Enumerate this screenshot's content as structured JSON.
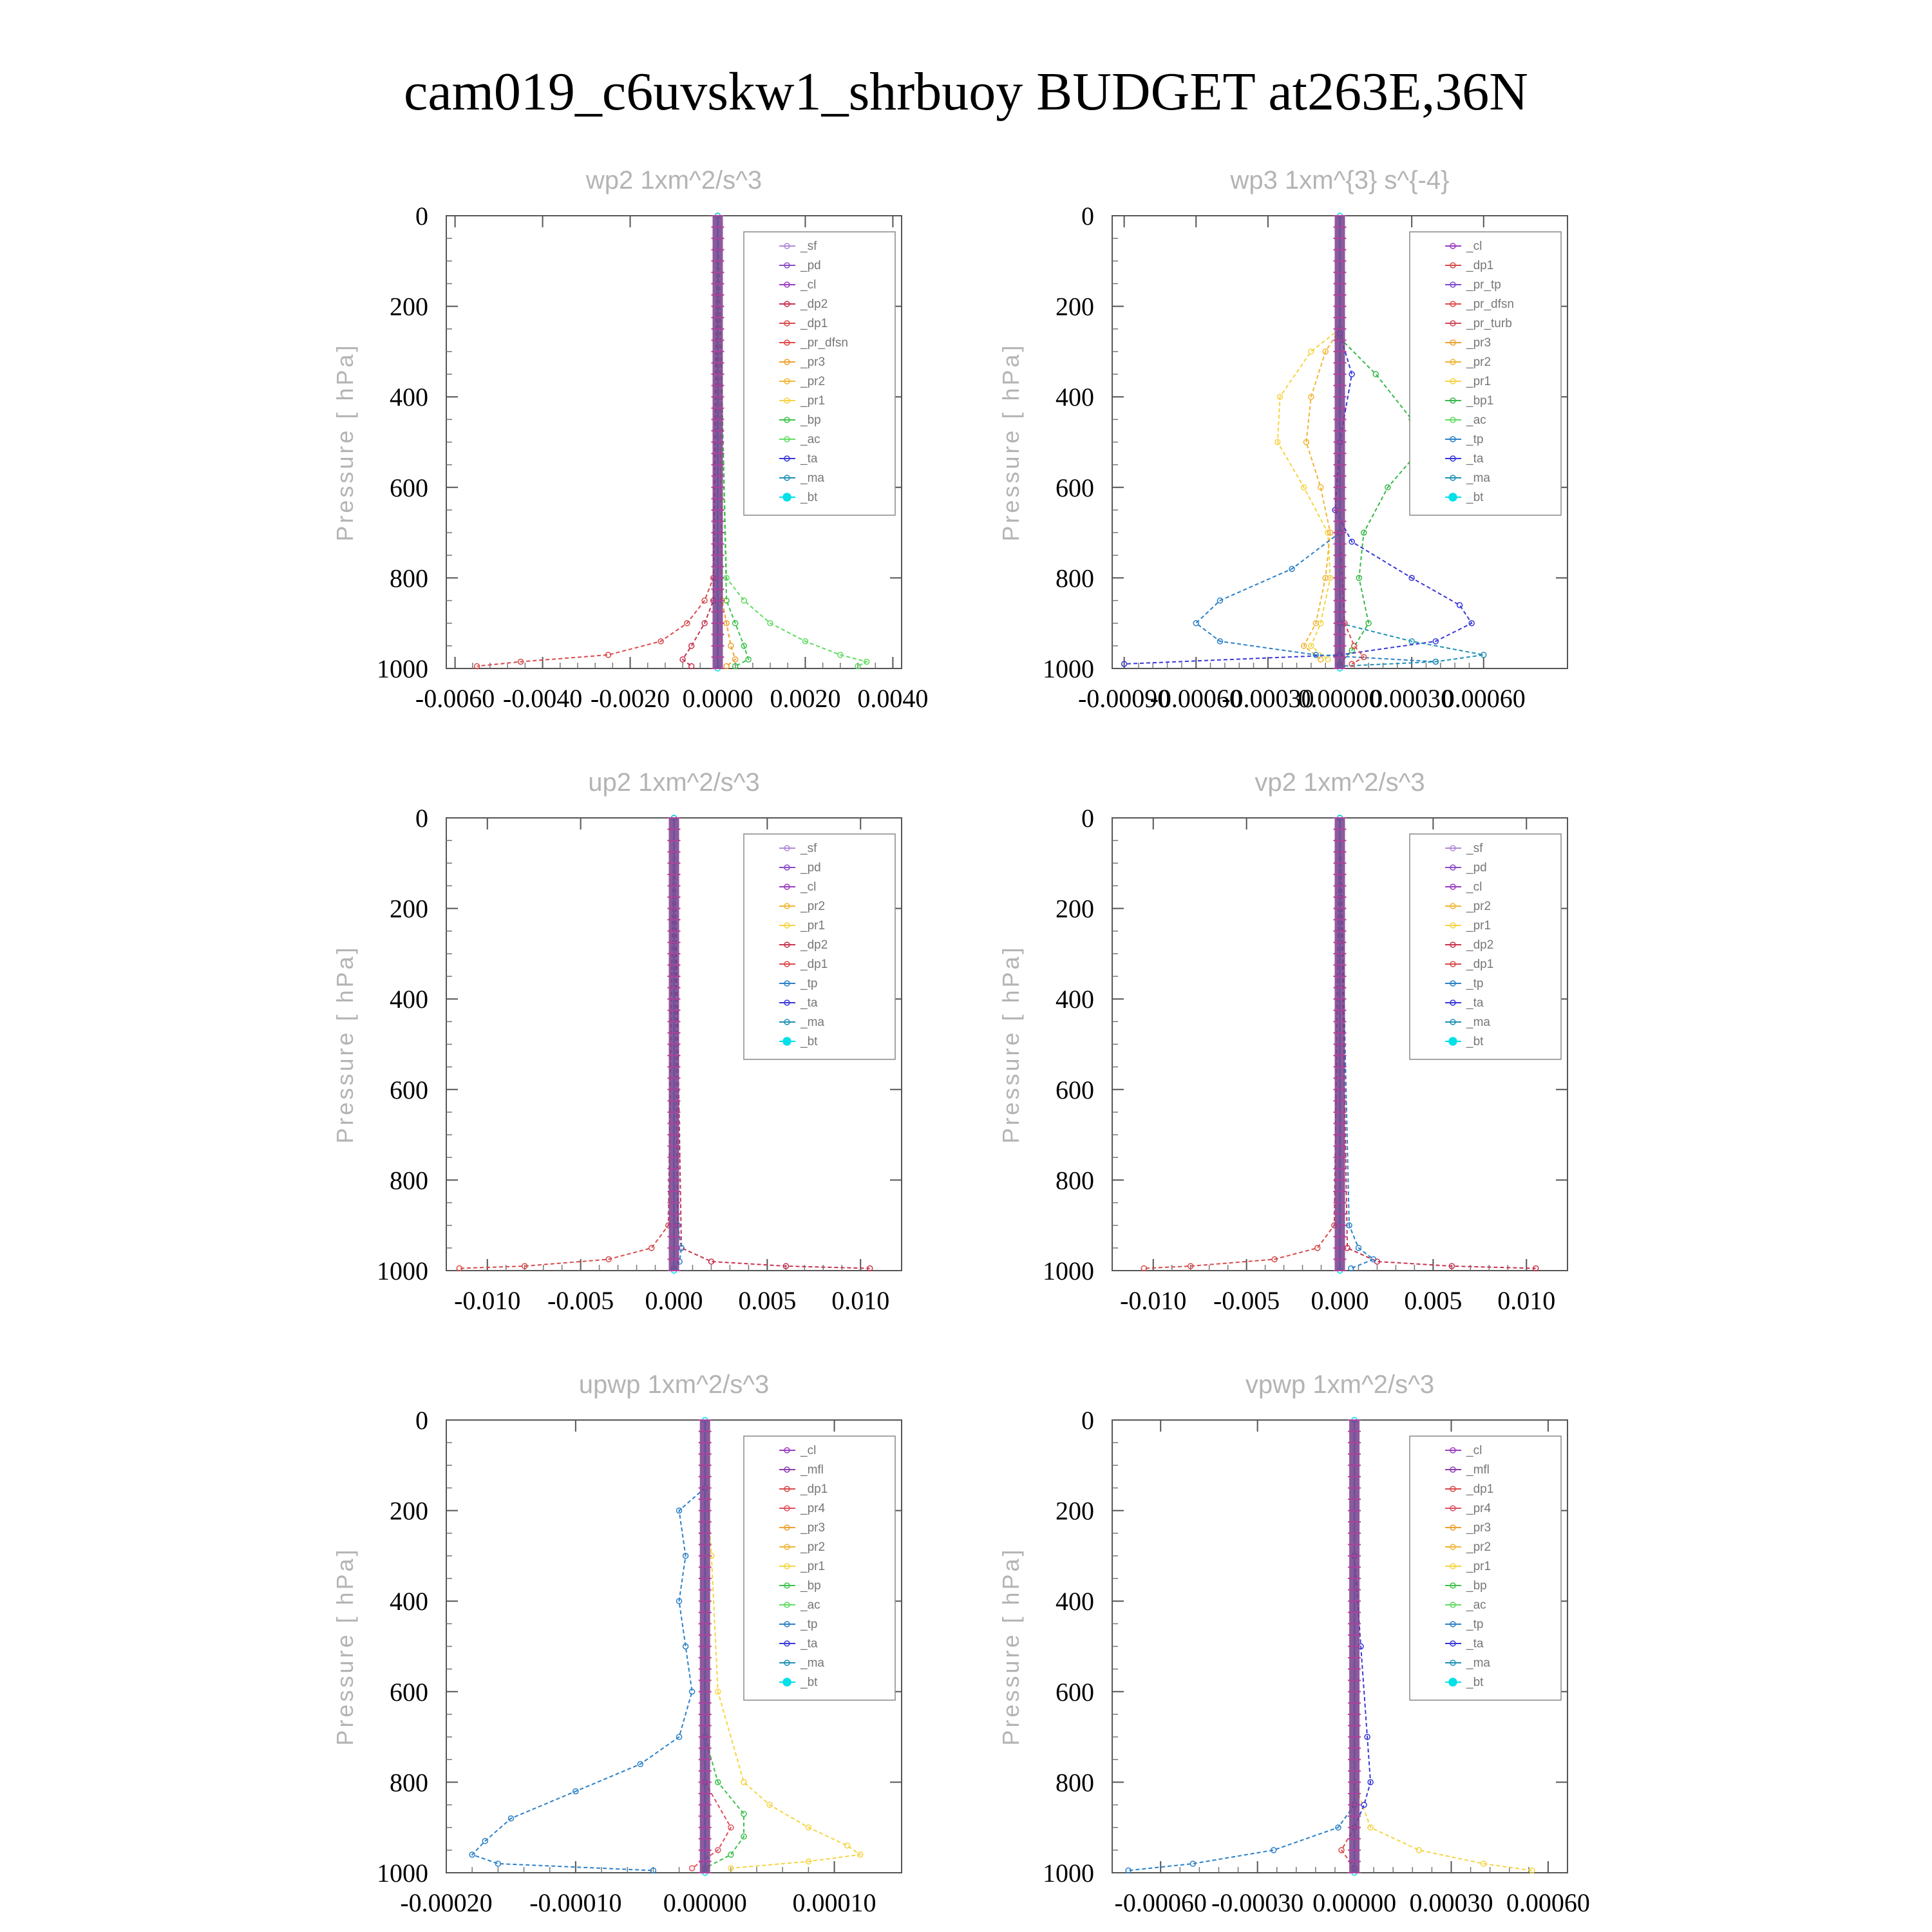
{
  "figure_title": "cam019_c6uvskw1_shrbuoy  BUDGET at263E,36N",
  "colors": {
    "_sf": "#b08ad8",
    "_pd": "#8a4bc8",
    "_cl": "#9b3cc0",
    "_dp2": "#c8324e",
    "_dp1": "#d84a4a",
    "_pr_dfsn": "#e24848",
    "_pr3": "#f0a030",
    "_pr2": "#f2b435",
    "_pr1": "#f5d442",
    "_bp": "#3cc24a",
    "_ac": "#60dc60",
    "_ta": "#3838d8",
    "_ma": "#1e90b8",
    "_bt": "#00e0e8",
    "_tp": "#2a80c8",
    "_mfl": "#8a3cb0",
    "_pr4": "#e05060",
    "_pr_tp": "#7a4ad0",
    "_pr_turb": "#d04858",
    "_bp1": "#38b848"
  },
  "chart_data": [
    {
      "type": "line",
      "title": "wp2   1xm^2/s^3",
      "ylabel": "Pressure  [ hPa]",
      "xlim": [
        -0.0062,
        0.0042
      ],
      "ylim": [
        0,
        1000
      ],
      "y_inverted": true,
      "xticks": [
        -0.006,
        -0.004,
        -0.002,
        0.0,
        0.002,
        0.004
      ],
      "xtick_labels": [
        "-0.0060",
        "-0.0040",
        "-0.0020",
        "0.0000",
        "0.0020",
        "0.0040"
      ],
      "yticks": [
        0,
        200,
        400,
        600,
        800,
        1000
      ],
      "ytick_labels": [
        "0",
        "200",
        "400",
        "600",
        "800",
        "1000"
      ],
      "legend": [
        "_sf",
        "_pd",
        "_cl",
        "_dp2",
        "_dp1",
        "_pr_dfsn",
        "_pr3",
        "_pr2",
        "_pr1",
        "_bp",
        "_ac",
        "_ta",
        "_ma",
        "_bt"
      ],
      "series": [
        {
          "name": "_dp1",
          "pressure": [
            0,
            800,
            850,
            900,
            940,
            970,
            985,
            995
          ],
          "values": [
            0,
            -0.0001,
            -0.0003,
            -0.0007,
            -0.0013,
            -0.0025,
            -0.0045,
            -0.0055
          ]
        },
        {
          "name": "_dp2",
          "pressure": [
            0,
            850,
            900,
            950,
            980,
            995
          ],
          "values": [
            0,
            -0.0001,
            -0.0003,
            -0.0006,
            -0.0008,
            -0.0006
          ]
        },
        {
          "name": "_ac",
          "pressure": [
            0,
            800,
            850,
            900,
            940,
            970,
            985,
            995
          ],
          "values": [
            0,
            0.0002,
            0.0006,
            0.0012,
            0.002,
            0.0028,
            0.0034,
            0.0032
          ]
        },
        {
          "name": "_bp",
          "pressure": [
            0,
            850,
            900,
            950,
            980,
            995
          ],
          "values": [
            0,
            0.0002,
            0.0004,
            0.0006,
            0.0007,
            0.0004
          ]
        },
        {
          "name": "_pr3",
          "pressure": [
            0,
            850,
            900,
            950,
            980,
            995
          ],
          "values": [
            0,
            0.0001,
            0.0002,
            0.0003,
            0.0004,
            0.0002
          ]
        },
        {
          "name": "_bt",
          "pressure": [
            0,
            1000
          ],
          "values": [
            0,
            0
          ]
        }
      ]
    },
    {
      "type": "line",
      "title": "wp3   1xm^{3} s^{-4}",
      "ylabel": "Pressure  [ hPa]",
      "xlim": [
        -0.00095,
        0.00095
      ],
      "ylim": [
        0,
        1000
      ],
      "y_inverted": true,
      "xticks": [
        -0.0009,
        -0.0006,
        -0.0003,
        0.0,
        0.0003,
        0.0006
      ],
      "xtick_labels": [
        "-0.00090",
        "-0.00060",
        "-0.00030",
        "0.00000",
        "0.00030",
        "0.00060"
      ],
      "yticks": [
        0,
        200,
        400,
        600,
        800,
        1000
      ],
      "ytick_labels": [
        "0",
        "200",
        "400",
        "600",
        "800",
        "1000"
      ],
      "legend": [
        "_cl",
        "_dp1",
        "_pr_tp",
        "_pr_dfsn",
        "_pr_turb",
        "_pr3",
        "_pr2",
        "_pr1",
        "_bp1",
        "_ac",
        "_tp",
        "_ta",
        "_ma",
        "_bt"
      ],
      "series": [
        {
          "name": "_pr1",
          "pressure": [
            250,
            300,
            400,
            500,
            600,
            700,
            800,
            900,
            950,
            980
          ],
          "values": [
            0,
            -0.00012,
            -0.00025,
            -0.00026,
            -0.00015,
            -5e-05,
            -4e-05,
            -8e-05,
            -0.00012,
            -5e-05
          ]
        },
        {
          "name": "_pr2",
          "pressure": [
            250,
            300,
            400,
            500,
            600,
            700,
            800,
            900,
            950,
            980
          ],
          "values": [
            0,
            -6e-05,
            -0.00012,
            -0.00014,
            -8e-05,
            -4e-05,
            -6e-05,
            -0.0001,
            -0.00015,
            -8e-05
          ]
        },
        {
          "name": "_bp1",
          "pressure": [
            270,
            350,
            450,
            520,
            600,
            700,
            800,
            900,
            960,
            990
          ],
          "values": [
            0,
            0.00015,
            0.0003,
            0.00033,
            0.0002,
            0.0001,
            8e-05,
            0.00012,
            5e-05,
            0.0
          ]
        },
        {
          "name": "_ta",
          "pressure": [
            260,
            350,
            500,
            650,
            720,
            800,
            860,
            900,
            940,
            970,
            990
          ],
          "values": [
            0,
            5e-05,
            0.0,
            -2e-05,
            5e-05,
            0.0003,
            0.0005,
            0.00055,
            0.0004,
            0.0,
            -0.0009
          ]
        },
        {
          "name": "_tp",
          "pressure": [
            700,
            780,
            850,
            900,
            940,
            970,
            985
          ],
          "values": [
            0,
            -0.0002,
            -0.0005,
            -0.0006,
            -0.0005,
            -0.0001,
            0.0004
          ]
        },
        {
          "name": "_ma",
          "pressure": [
            900,
            940,
            970,
            985,
            995
          ],
          "values": [
            0,
            0.0003,
            0.0006,
            0.0004,
            0.0
          ]
        },
        {
          "name": "_dp1",
          "pressure": [
            700,
            900,
            950,
            975,
            990
          ],
          "values": [
            0,
            2e-05,
            6e-05,
            0.0001,
            5e-05
          ]
        },
        {
          "name": "_bt",
          "pressure": [
            0,
            1000
          ],
          "values": [
            0,
            0
          ]
        }
      ]
    },
    {
      "type": "line",
      "title": "up2   1xm^2/s^3",
      "ylabel": "Pressure  [ hPa]",
      "xlim": [
        -0.0122,
        0.0122
      ],
      "ylim": [
        0,
        1000
      ],
      "y_inverted": true,
      "xticks": [
        -0.01,
        -0.005,
        0.0,
        0.005,
        0.01
      ],
      "xtick_labels": [
        "-0.010",
        "-0.005",
        "0.000",
        "0.005",
        "0.010"
      ],
      "yticks": [
        0,
        200,
        400,
        600,
        800,
        1000
      ],
      "ytick_labels": [
        "0",
        "200",
        "400",
        "600",
        "800",
        "1000"
      ],
      "legend": [
        "_sf",
        "_pd",
        "_cl",
        "_pr2",
        "_pr1",
        "_dp2",
        "_dp1",
        "_tp",
        "_ta",
        "_ma",
        "_bt"
      ],
      "series": [
        {
          "name": "_dp1",
          "pressure": [
            0,
            900,
            950,
            975,
            990,
            995
          ],
          "values": [
            0,
            -0.0003,
            -0.0012,
            -0.0035,
            -0.008,
            -0.0115
          ]
        },
        {
          "name": "_dp2",
          "pressure": [
            0,
            950,
            980,
            990,
            995
          ],
          "values": [
            0,
            0.0004,
            0.002,
            0.006,
            0.0105
          ]
        },
        {
          "name": "_tp",
          "pressure": [
            0,
            900,
            950,
            980,
            995
          ],
          "values": [
            0,
            0.0002,
            0.0004,
            0.0003,
            0.0
          ]
        },
        {
          "name": "_bt",
          "pressure": [
            0,
            1000
          ],
          "values": [
            0,
            0
          ]
        }
      ]
    },
    {
      "type": "line",
      "title": "vp2   1xm^2/s^3",
      "ylabel": "Pressure  [ hPa]",
      "xlim": [
        -0.0122,
        0.0122
      ],
      "ylim": [
        0,
        1000
      ],
      "y_inverted": true,
      "xticks": [
        -0.01,
        -0.005,
        0.0,
        0.005,
        0.01
      ],
      "xtick_labels": [
        "-0.010",
        "-0.005",
        "0.000",
        "0.005",
        "0.010"
      ],
      "yticks": [
        0,
        200,
        400,
        600,
        800,
        1000
      ],
      "ytick_labels": [
        "0",
        "200",
        "400",
        "600",
        "800",
        "1000"
      ],
      "legend": [
        "_sf",
        "_pd",
        "_cl",
        "_pr2",
        "_pr1",
        "_dp2",
        "_dp1",
        "_tp",
        "_ta",
        "_ma",
        "_bt"
      ],
      "series": [
        {
          "name": "_dp1",
          "pressure": [
            0,
            900,
            950,
            975,
            990,
            995
          ],
          "values": [
            0,
            -0.0003,
            -0.0012,
            -0.0035,
            -0.008,
            -0.0105
          ]
        },
        {
          "name": "_dp2",
          "pressure": [
            0,
            950,
            980,
            990,
            995
          ],
          "values": [
            0,
            0.0004,
            0.002,
            0.006,
            0.0105
          ]
        },
        {
          "name": "_tp",
          "pressure": [
            0,
            900,
            950,
            975,
            995
          ],
          "values": [
            0,
            0.0005,
            0.001,
            0.0018,
            0.0006
          ]
        },
        {
          "name": "_bt",
          "pressure": [
            0,
            1000
          ],
          "values": [
            0,
            0
          ]
        }
      ]
    },
    {
      "type": "line",
      "title": "upwp   1xm^2/s^3",
      "ylabel": "Pressure  [ hPa]",
      "xlim": [
        -0.0002,
        0.000152
      ],
      "ylim": [
        0,
        1000
      ],
      "y_inverted": true,
      "xticks": [
        -0.0002,
        -0.0001,
        0.0,
        0.0001
      ],
      "xtick_labels": [
        "-0.00020",
        "-0.00010",
        "0.00000",
        "0.00010"
      ],
      "yticks": [
        0,
        200,
        400,
        600,
        800,
        1000
      ],
      "ytick_labels": [
        "0",
        "200",
        "400",
        "600",
        "800",
        "1000"
      ],
      "legend": [
        "_cl",
        "_mfl",
        "_dp1",
        "_pr4",
        "_pr3",
        "_pr2",
        "_pr1",
        "_bp",
        "_ac",
        "_tp",
        "_ta",
        "_ma",
        "_bt"
      ],
      "series": [
        {
          "name": "_tp",
          "pressure": [
            150,
            200,
            300,
            400,
            500,
            600,
            700,
            760,
            820,
            880,
            930,
            960,
            980,
            995
          ],
          "values": [
            0,
            -2e-05,
            -1.5e-05,
            -2e-05,
            -1.5e-05,
            -1e-05,
            -2e-05,
            -5e-05,
            -0.0001,
            -0.00015,
            -0.00017,
            -0.00018,
            -0.00016,
            -4e-05
          ]
        },
        {
          "name": "_pr1",
          "pressure": [
            100,
            300,
            600,
            800,
            850,
            900,
            940,
            960,
            975,
            990
          ],
          "values": [
            0,
            5e-06,
            1e-05,
            3e-05,
            5e-05,
            8e-05,
            0.00011,
            0.00012,
            8e-05,
            2e-05
          ]
        },
        {
          "name": "_bp",
          "pressure": [
            700,
            800,
            870,
            920,
            960,
            990
          ],
          "values": [
            0,
            1e-05,
            3e-05,
            3e-05,
            2e-05,
            0.0
          ]
        },
        {
          "name": "_pr4",
          "pressure": [
            800,
            900,
            950,
            990
          ],
          "values": [
            0,
            2e-05,
            1e-05,
            -1e-05
          ]
        },
        {
          "name": "_bt",
          "pressure": [
            0,
            1000
          ],
          "values": [
            0,
            0
          ]
        }
      ]
    },
    {
      "type": "line",
      "title": "vpwp   1xm^2/s^3",
      "ylabel": "Pressure  [ hPa]",
      "xlim": [
        -0.00075,
        0.00066
      ],
      "ylim": [
        0,
        1000
      ],
      "y_inverted": true,
      "xticks": [
        -0.0006,
        -0.0003,
        0.0,
        0.0003,
        0.0006
      ],
      "xtick_labels": [
        "-0.00060",
        "-0.00030",
        "0.00000",
        "0.00030",
        "0.00060"
      ],
      "yticks": [
        0,
        200,
        400,
        600,
        800,
        1000
      ],
      "ytick_labels": [
        "0",
        "200",
        "400",
        "600",
        "800",
        "1000"
      ],
      "legend": [
        "_cl",
        "_mfl",
        "_dp1",
        "_pr4",
        "_pr3",
        "_pr2",
        "_pr1",
        "_bp",
        "_ac",
        "_tp",
        "_ta",
        "_ma",
        "_bt"
      ],
      "series": [
        {
          "name": "_tp",
          "pressure": [
            850,
            900,
            950,
            980,
            995
          ],
          "values": [
            0,
            -5e-05,
            -0.00025,
            -0.0005,
            -0.0007
          ]
        },
        {
          "name": "_pr1",
          "pressure": [
            800,
            900,
            950,
            980,
            995
          ],
          "values": [
            0,
            5e-05,
            0.0002,
            0.0004,
            0.00055
          ]
        },
        {
          "name": "_ta",
          "pressure": [
            300,
            500,
            700,
            800,
            850,
            900
          ],
          "values": [
            0,
            2e-05,
            4e-05,
            5e-05,
            3e-05,
            0.0
          ]
        },
        {
          "name": "_dp1",
          "pressure": [
            900,
            950,
            990
          ],
          "values": [
            0,
            -4e-05,
            0.0
          ]
        },
        {
          "name": "_bt",
          "pressure": [
            0,
            1000
          ],
          "values": [
            0,
            0
          ]
        }
      ]
    }
  ]
}
